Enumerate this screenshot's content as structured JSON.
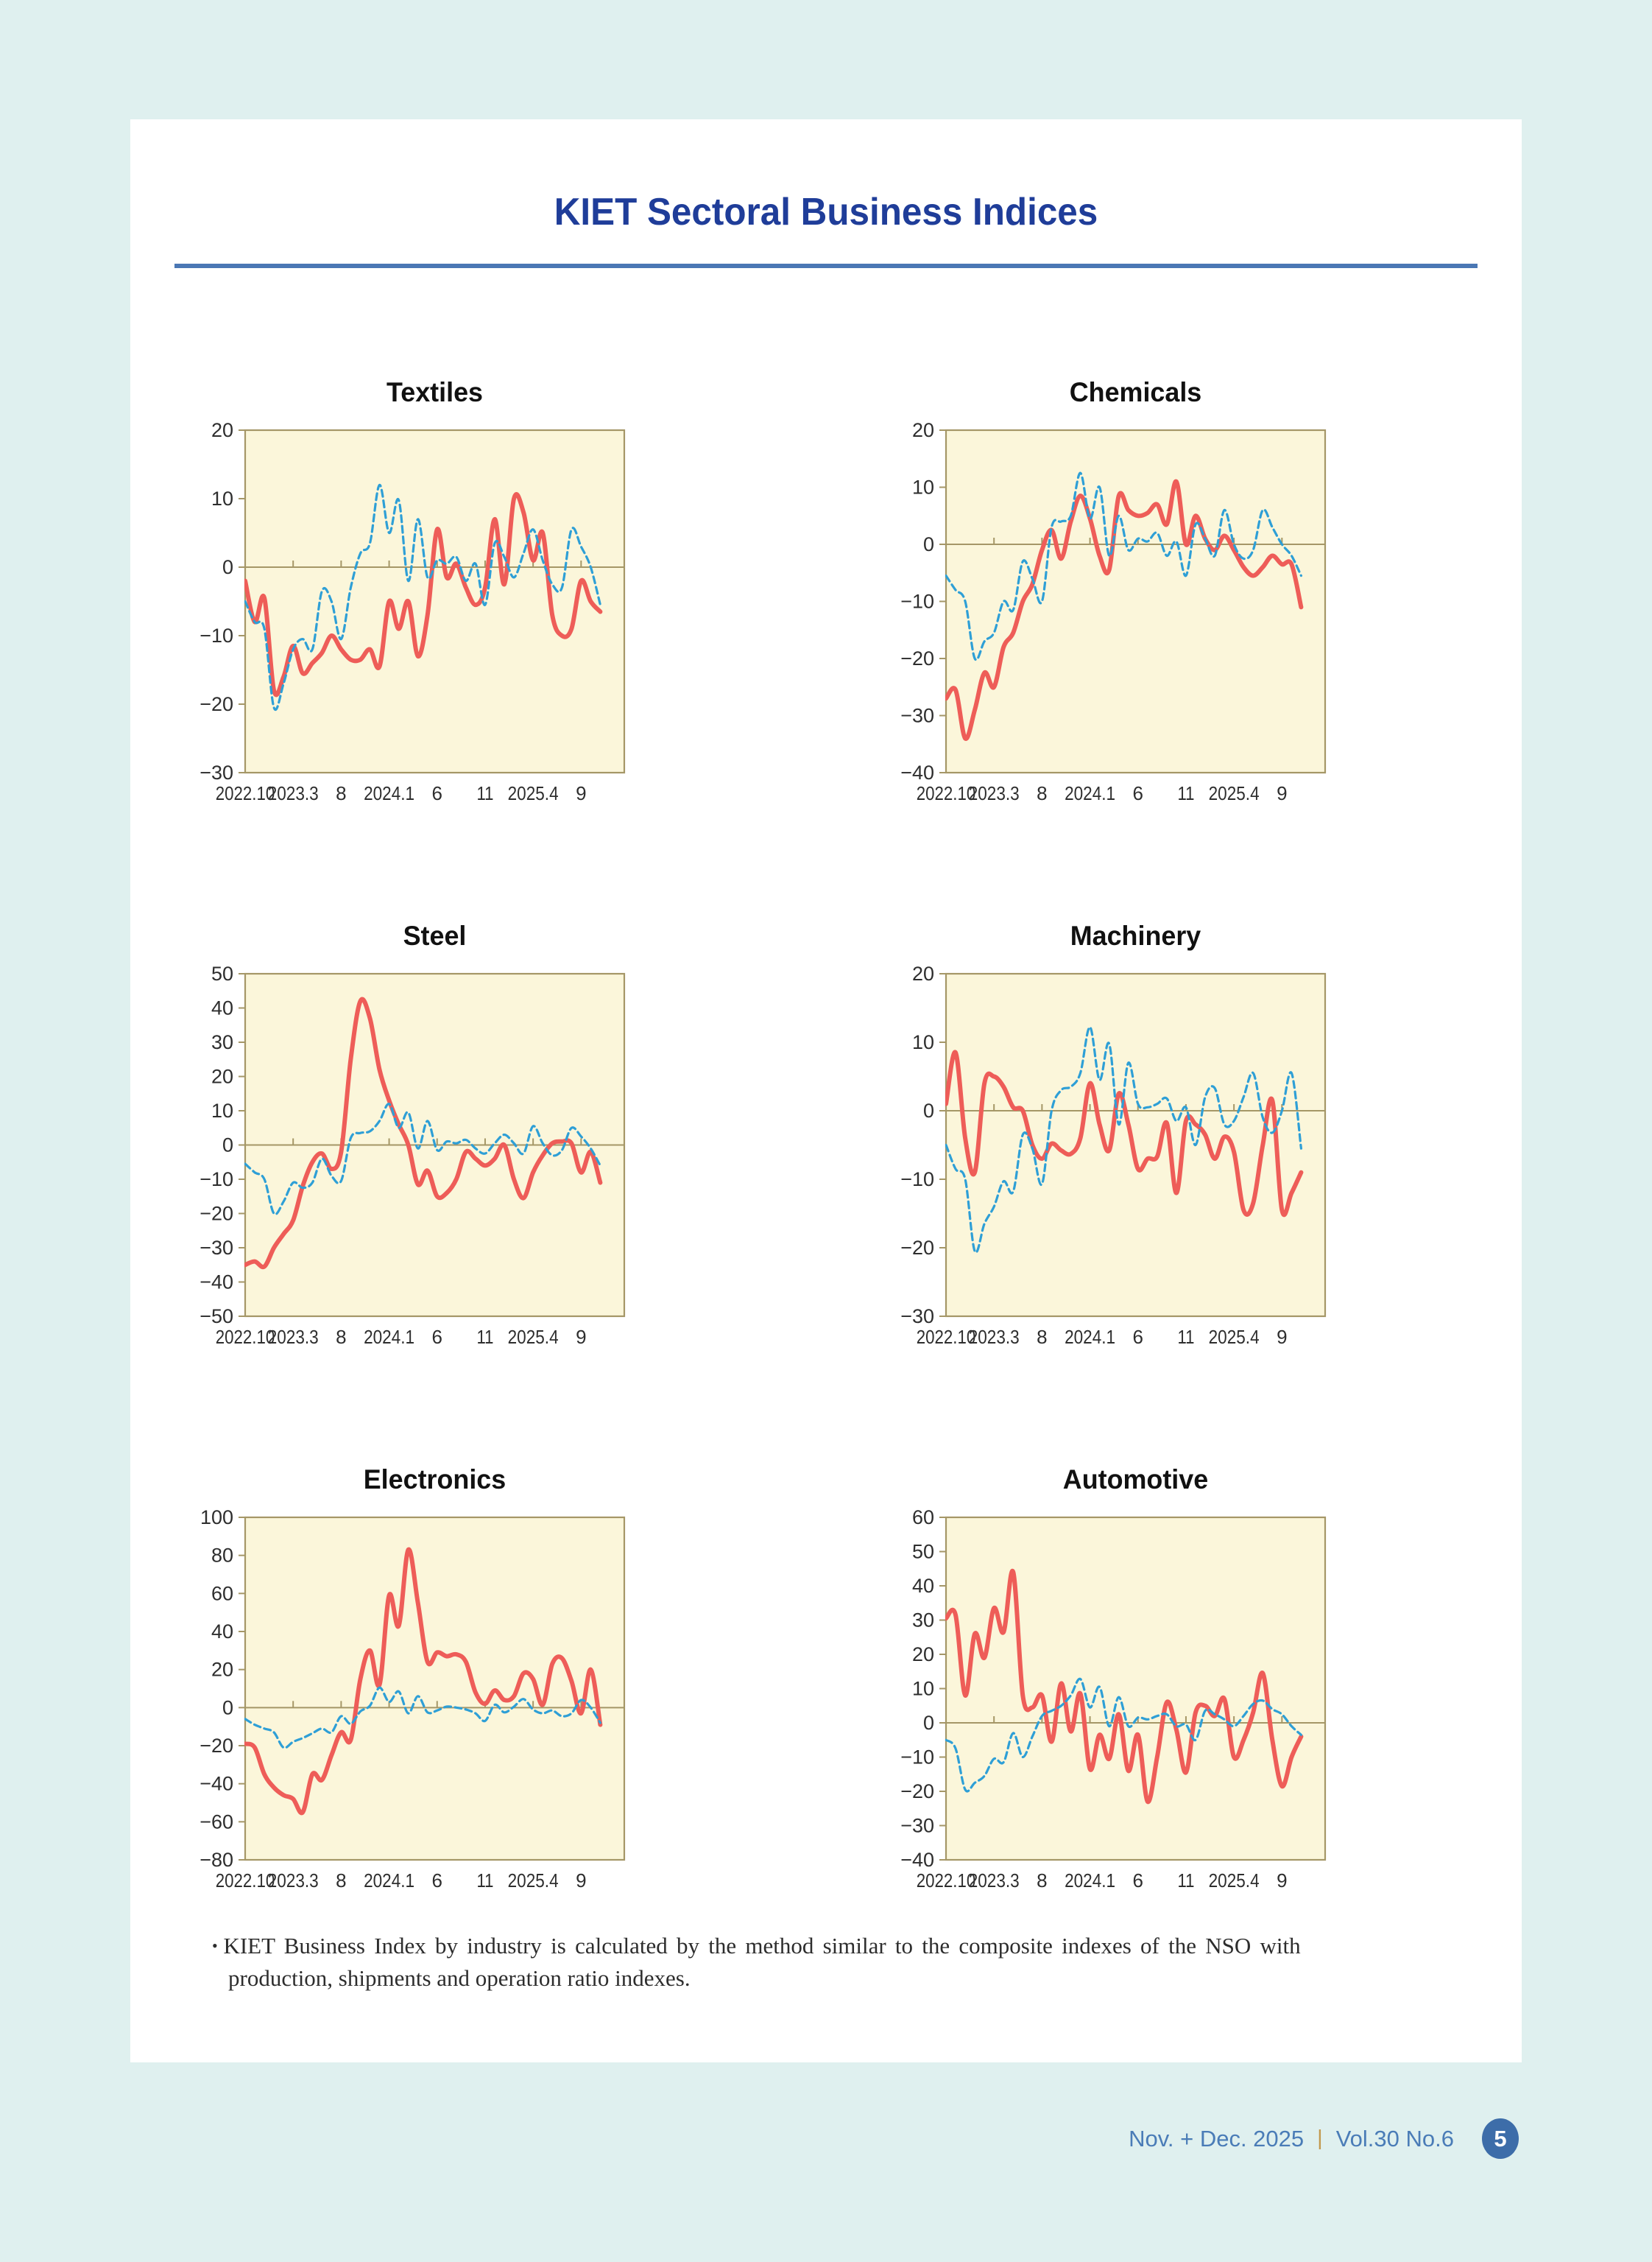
{
  "page": {
    "title": "KIET Sectoral Business Indices",
    "footnote_bullet": "•",
    "footnote_line1": "KIET Business Index by industry is calculated by the method similar to the composite indexes of the NSO with",
    "footnote_line2": "production, shipments and operation ratio indexes.",
    "footer": {
      "issue": "Nov. + Dec. 2025",
      "separator": "|",
      "volume": "Vol.30  No.6",
      "page_number": "5"
    }
  },
  "colors": {
    "page_background": "#dff0ef",
    "card_background": "#ffffff",
    "title_blue": "#1f3d99",
    "rule_blue": "#4a77b4",
    "plot_background": "#fbf6da",
    "plot_border": "#a59767",
    "series_red": "#ee5d58",
    "series_blue": "#2e9fd6",
    "axis_text": "#2e2e2e",
    "footer_blue": "#4a7cb7",
    "footer_separator_gold": "#c3994f",
    "page_badge_blue": "#3d6da9"
  },
  "x_axis": {
    "tick_labels": [
      "2022.10",
      "2023.3",
      "8",
      "2024.1",
      "6",
      "11",
      "2025.4",
      "9"
    ],
    "tick_months": [
      0,
      5,
      10,
      15,
      20,
      25,
      30,
      35
    ],
    "total_months": 39.5
  },
  "chart_data": [
    {
      "type": "line",
      "title": "Textiles",
      "x_start": "2022.10",
      "x_end": "2025.11",
      "frequency": "monthly",
      "ylim": [
        -30,
        20
      ],
      "yticks": [
        20,
        10,
        0,
        -10,
        -20,
        -30
      ],
      "grid": false,
      "legend": "none",
      "series": [
        {
          "name": "solid-red",
          "line_style": "solid",
          "color": "#ee5d58",
          "values": [
            -2,
            -8,
            -4.5,
            -18,
            -16,
            -11.5,
            -15.5,
            -14,
            -12.5,
            -10,
            -12,
            -13.5,
            -13.5,
            -12,
            -14.5,
            -5,
            -9,
            -5,
            -13,
            -7,
            5.5,
            -1.5,
            0.5,
            -3,
            -5.5,
            -3,
            7,
            -2.5,
            10,
            8,
            1,
            5,
            -7,
            -10,
            -9,
            -2,
            -5,
            -6.5
          ]
        },
        {
          "name": "dashed-blue",
          "line_style": "dashed",
          "color": "#2e9fd6",
          "values": [
            -5,
            -8,
            -9,
            -20.5,
            -17,
            -12,
            -10.5,
            -12,
            -3.5,
            -5,
            -10.5,
            -3,
            2,
            3.5,
            12,
            5,
            9.8,
            -2,
            7,
            -1.5,
            1,
            0.5,
            1.5,
            -2,
            0.5,
            -5.5,
            3.5,
            1.5,
            -1.5,
            2,
            5.5,
            1,
            -2.5,
            -3,
            5.5,
            3,
            0,
            -5.5
          ]
        }
      ]
    },
    {
      "type": "line",
      "title": "Chemicals",
      "x_start": "2022.10",
      "x_end": "2025.11",
      "frequency": "monthly",
      "ylim": [
        -40,
        20
      ],
      "yticks": [
        20,
        10,
        0,
        -10,
        -20,
        -30,
        -40
      ],
      "grid": false,
      "legend": "none",
      "series": [
        {
          "name": "solid-red",
          "line_style": "solid",
          "color": "#ee5d58",
          "values": [
            -27,
            -25.5,
            -34,
            -29,
            -22.5,
            -25,
            -18,
            -15.5,
            -10,
            -7,
            -1,
            2.5,
            -2.5,
            4,
            8.5,
            4.5,
            -2,
            -4.5,
            8.5,
            6,
            5,
            5.5,
            7,
            3.5,
            11,
            0,
            5,
            1,
            -1,
            1.5,
            -1,
            -4,
            -5.5,
            -4,
            -2,
            -3.5,
            -3.5,
            -11
          ]
        },
        {
          "name": "dashed-blue",
          "line_style": "dashed",
          "color": "#2e9fd6",
          "values": [
            -5.5,
            -8,
            -10,
            -20,
            -17,
            -15.5,
            -10,
            -11.5,
            -3,
            -6,
            -10,
            3,
            4,
            5,
            12.5,
            4.5,
            10,
            -2,
            5,
            -1,
            1,
            0.5,
            2,
            -2,
            0.5,
            -5.5,
            3.5,
            1,
            -2,
            6,
            0,
            -2.5,
            -1,
            6,
            3,
            0,
            -2,
            -5.5
          ]
        }
      ]
    },
    {
      "type": "line",
      "title": "Steel",
      "x_start": "2022.10",
      "x_end": "2025.11",
      "frequency": "monthly",
      "ylim": [
        -50,
        50
      ],
      "yticks": [
        50,
        40,
        30,
        20,
        10,
        0,
        -10,
        -20,
        -30,
        -40,
        -50
      ],
      "grid": false,
      "legend": "none",
      "series": [
        {
          "name": "solid-red",
          "line_style": "solid",
          "color": "#ee5d58",
          "values": [
            -35,
            -34,
            -35.5,
            -30,
            -26,
            -22,
            -12,
            -5,
            -2.5,
            -7,
            -2,
            25,
            42,
            37,
            22,
            13,
            6,
            0,
            -11.5,
            -7.5,
            -15,
            -14,
            -10,
            -2,
            -4,
            -6,
            -4,
            0,
            -10,
            -15.5,
            -8,
            -3,
            0.5,
            1,
            0.5,
            -8,
            -2,
            -11
          ]
        },
        {
          "name": "dashed-blue",
          "line_style": "dashed",
          "color": "#2e9fd6",
          "values": [
            -5.5,
            -8,
            -10,
            -20,
            -16.5,
            -11,
            -12.5,
            -11,
            -4,
            -9,
            -10.5,
            2,
            3.5,
            4,
            7,
            12,
            5,
            9.5,
            -1,
            7,
            -1.5,
            1,
            0.5,
            1.5,
            -1,
            -2.5,
            0.5,
            3,
            0.5,
            -2.5,
            5.5,
            0.5,
            -3,
            -1.5,
            5,
            2.5,
            -1,
            -6
          ]
        }
      ]
    },
    {
      "type": "line",
      "title": "Machinery",
      "x_start": "2022.10",
      "x_end": "2025.11",
      "frequency": "monthly",
      "ylim": [
        -30,
        20
      ],
      "yticks": [
        20,
        10,
        0,
        -10,
        -20,
        -30
      ],
      "grid": false,
      "legend": "none",
      "series": [
        {
          "name": "solid-red",
          "line_style": "solid",
          "color": "#ee5d58",
          "values": [
            1,
            8.5,
            -4,
            -9,
            4,
            5,
            3.5,
            0.5,
            0,
            -5,
            -7,
            -4.8,
            -5.8,
            -6.3,
            -4,
            4,
            -2,
            -5.8,
            2.5,
            -2,
            -8.5,
            -7,
            -6.7,
            -1.8,
            -12,
            -1.5,
            -2,
            -3.5,
            -7,
            -3.8,
            -6,
            -14.5,
            -13.5,
            -5,
            1.5,
            -14.5,
            -12,
            -9
          ]
        },
        {
          "name": "dashed-blue",
          "line_style": "dashed",
          "color": "#2e9fd6",
          "values": [
            -5,
            -8.5,
            -10,
            -20.5,
            -16.5,
            -14,
            -10.3,
            -11.8,
            -3.5,
            -5.5,
            -10.7,
            0,
            3,
            3.5,
            5.5,
            12.2,
            4.5,
            9.8,
            -2,
            7,
            1,
            0.5,
            1,
            1.8,
            -1.5,
            0.5,
            -5,
            2,
            3.3,
            -2,
            -1.5,
            2,
            5.5,
            -1,
            -3.2,
            0,
            5.5,
            -5.5
          ]
        }
      ]
    },
    {
      "type": "line",
      "title": "Electronics",
      "x_start": "2022.10",
      "x_end": "2025.11",
      "frequency": "monthly",
      "ylim": [
        -80,
        100
      ],
      "yticks": [
        100,
        80,
        60,
        40,
        20,
        0,
        -20,
        -40,
        -60,
        -80
      ],
      "grid": false,
      "legend": "none",
      "series": [
        {
          "name": "solid-red",
          "line_style": "solid",
          "color": "#ee5d58",
          "values": [
            -19,
            -21,
            -35,
            -42,
            -46,
            -48,
            -55,
            -35,
            -38,
            -25,
            -13,
            -17,
            15,
            30,
            12,
            59,
            43,
            83,
            55,
            24,
            29,
            27,
            28,
            24,
            8,
            2,
            9,
            4,
            6,
            18,
            15,
            1.5,
            23,
            26,
            14,
            -3,
            20,
            -9
          ]
        },
        {
          "name": "dashed-blue",
          "line_style": "dashed",
          "color": "#2e9fd6",
          "values": [
            -6,
            -9,
            -11,
            -13,
            -21,
            -18,
            -16,
            -13.5,
            -11,
            -13,
            -4.5,
            -8.5,
            -2,
            1,
            10.5,
            3,
            8.5,
            -3,
            6,
            -2.5,
            -1.5,
            0.5,
            0,
            -1,
            -3,
            -7,
            1.5,
            -2.5,
            0.5,
            4.5,
            -1,
            -3,
            -1.5,
            -4.5,
            -3,
            4,
            0,
            -8
          ]
        }
      ]
    },
    {
      "type": "line",
      "title": "Automotive",
      "x_start": "2022.10",
      "x_end": "2025.11",
      "frequency": "monthly",
      "ylim": [
        -40,
        60
      ],
      "yticks": [
        60,
        50,
        40,
        30,
        20,
        10,
        0,
        -10,
        -20,
        -30,
        -40
      ],
      "grid": false,
      "legend": "none",
      "series": [
        {
          "name": "solid-red",
          "line_style": "solid",
          "color": "#ee5d58",
          "values": [
            30.5,
            31.5,
            8,
            26,
            19,
            33.5,
            26.5,
            44,
            8,
            4.5,
            8,
            -5.5,
            11.5,
            -2.5,
            8.5,
            -13.5,
            -3.5,
            -10.5,
            2.5,
            -14,
            -3.5,
            -23,
            -10,
            6,
            -2,
            -14.5,
            3,
            5,
            2,
            7,
            -10,
            -5,
            3,
            14.5,
            -5,
            -18.5,
            -10,
            -4
          ]
        },
        {
          "name": "dashed-blue",
          "line_style": "dashed",
          "color": "#2e9fd6",
          "values": [
            -5,
            -7.5,
            -19.5,
            -17.5,
            -15.5,
            -10.5,
            -11.5,
            -3,
            -10,
            -4,
            2,
            3.5,
            5,
            8,
            12.8,
            4.5,
            10.5,
            -1,
            7.5,
            -1,
            1.5,
            1,
            2,
            2.5,
            -1,
            -0.5,
            -5,
            3.5,
            2.5,
            1,
            -1,
            2,
            5.5,
            6.5,
            4,
            2.5,
            -1,
            -3.5
          ]
        }
      ]
    }
  ]
}
